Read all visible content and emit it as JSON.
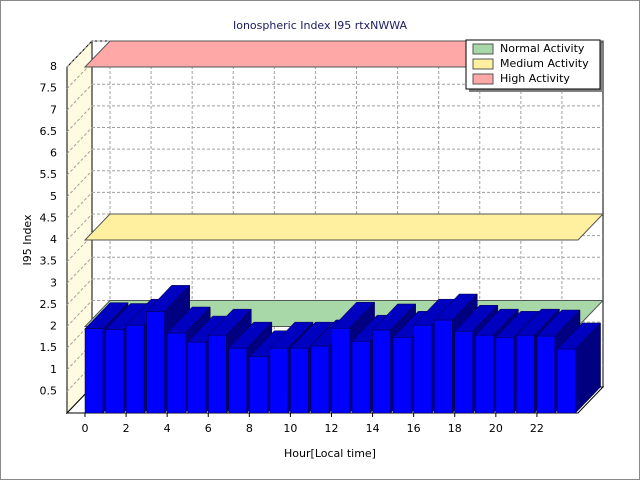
{
  "chart_data": {
    "type": "bar3d",
    "title": "Ionospheric Index I95 rtxNWWA",
    "x_label": "Hour[Local time]",
    "y_label": "I95 Index",
    "categories": [
      0,
      1,
      2,
      3,
      4,
      5,
      6,
      7,
      8,
      9,
      10,
      11,
      12,
      13,
      14,
      15,
      16,
      17,
      18,
      19,
      20,
      21,
      22,
      23
    ],
    "values": [
      1.95,
      1.93,
      2.03,
      2.35,
      1.85,
      1.64,
      1.8,
      1.5,
      1.3,
      1.5,
      1.5,
      1.55,
      1.96,
      1.66,
      1.92,
      1.75,
      2.03,
      2.15,
      1.89,
      1.8,
      1.75,
      1.8,
      1.78,
      1.48
    ],
    "color": "#0000ff",
    "xlim": [
      0,
      24
    ],
    "xticks": [
      0,
      2,
      4,
      6,
      8,
      10,
      12,
      14,
      16,
      18,
      20,
      22
    ],
    "ylim": [
      0,
      8
    ],
    "yticks": [
      0.5,
      1,
      1.5,
      2,
      2.5,
      3,
      3.5,
      4,
      4.5,
      5,
      5.5,
      6,
      6.5,
      7,
      7.5,
      8
    ],
    "grid": true,
    "legend": "top-right",
    "thresholds": [
      {
        "name": "Normal Activity",
        "color": "#a8d8a8",
        "value": 2
      },
      {
        "name": "Medium Activity",
        "color": "#fff0a0",
        "value": 4
      },
      {
        "name": "High Activity",
        "color": "#ffa8a8",
        "value": 8
      }
    ]
  }
}
